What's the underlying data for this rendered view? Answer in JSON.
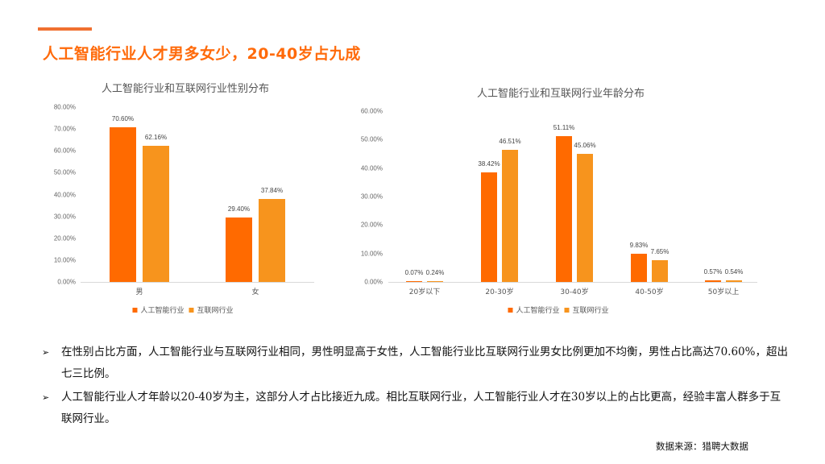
{
  "header": {
    "title": "人工智能行业人才男多女少，20-40岁占九成",
    "accent_color": "#f07030"
  },
  "colors": {
    "ai": "#ff6a00",
    "internet": "#f7941d"
  },
  "legend": {
    "ai": "人工智能行业",
    "internet": "互联网行业"
  },
  "chart_data": [
    {
      "type": "bar",
      "title": "人工智能行业和互联网行业性别分布",
      "categories": [
        "男",
        "女"
      ],
      "series": [
        {
          "name": "人工智能行业",
          "values": [
            70.6,
            29.4
          ],
          "labels": [
            "70.60%",
            "29.40%"
          ]
        },
        {
          "name": "互联网行业",
          "values": [
            62.16,
            37.84
          ],
          "labels": [
            "62.16%",
            "37.84%"
          ]
        }
      ],
      "yticks": [
        "0.00%",
        "10.00%",
        "20.00%",
        "30.00%",
        "40.00%",
        "50.00%",
        "60.00%",
        "70.00%",
        "80.00%"
      ],
      "ylim": [
        0,
        80
      ],
      "xlabel": "",
      "ylabel": "",
      "grid": false,
      "legend_position": "bottom"
    },
    {
      "type": "bar",
      "title": "人工智能行业和互联网行业年龄分布",
      "categories": [
        "20岁以下",
        "20-30岁",
        "30-40岁",
        "40-50岁",
        "50岁以上"
      ],
      "series": [
        {
          "name": "人工智能行业",
          "values": [
            0.07,
            38.42,
            51.11,
            9.83,
            0.57
          ],
          "labels": [
            "0.07%",
            "38.42%",
            "51.11%",
            "9.83%",
            "0.57%"
          ]
        },
        {
          "name": "互联网行业",
          "values": [
            0.24,
            46.51,
            45.06,
            7.65,
            0.54
          ],
          "labels": [
            "0.24%",
            "46.51%",
            "45.06%",
            "7.65%",
            "0.54%"
          ]
        }
      ],
      "yticks": [
        "0.00%",
        "10.00%",
        "20.00%",
        "30.00%",
        "40.00%",
        "50.00%",
        "60.00%"
      ],
      "ylim": [
        0,
        60
      ],
      "xlabel": "",
      "ylabel": "",
      "grid": false,
      "legend_position": "bottom"
    }
  ],
  "bullets": [
    {
      "icon": "arrow-bullet-icon",
      "marker": "➢",
      "text": "在性别占比方面，人工智能行业与互联网行业相同，男性明显高于女性，人工智能行业比互联网行业男女比例更加不均衡，男性占比高达70.60%，超出七三比例。"
    },
    {
      "icon": "arrow-bullet-icon",
      "marker": "➢",
      "text": "人工智能行业人才年龄以20-40岁为主，这部分人才占比接近九成。相比互联网行业，人工智能行业人才在30岁以上的占比更高，经验丰富人群多于互联网行业。"
    }
  ],
  "source": "数据来源：猎聘大数据"
}
